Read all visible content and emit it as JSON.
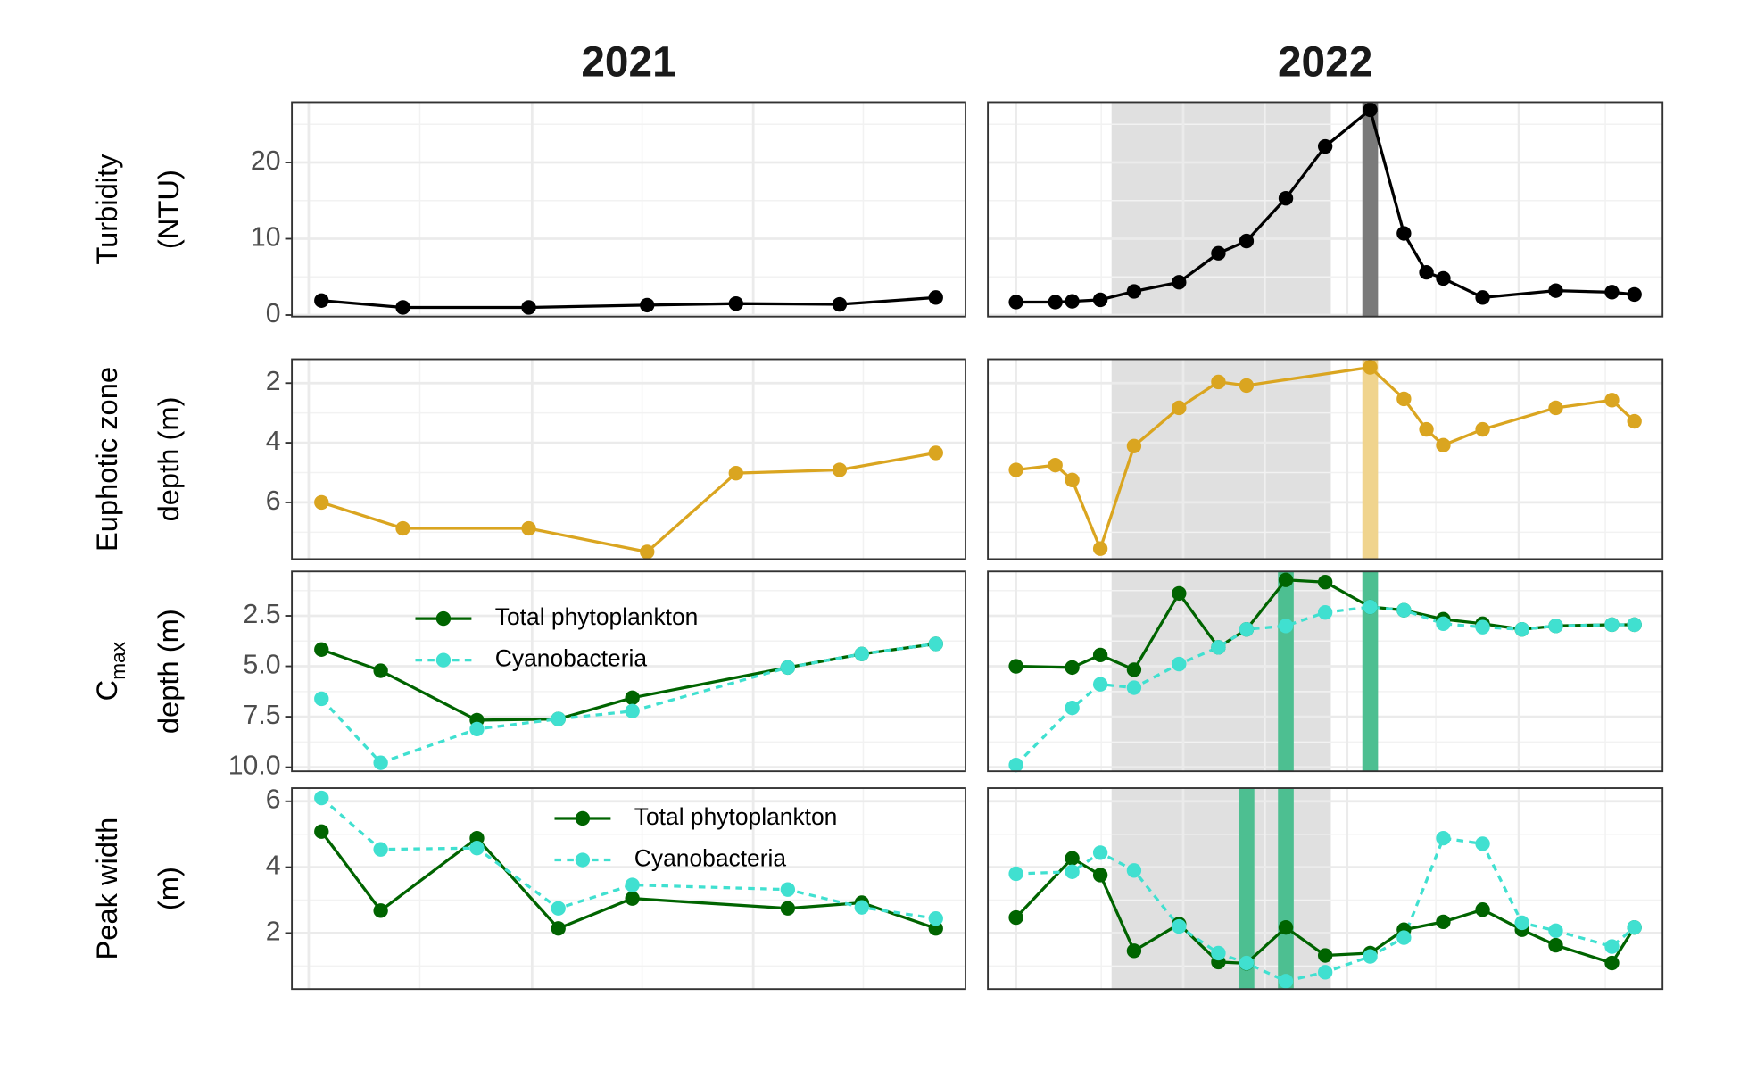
{
  "chart_data": [
    {
      "type": "line",
      "title": "2021",
      "ylabel": [
        "Turbidity",
        "(NTU)"
      ],
      "xlim": [
        150,
        241
      ],
      "ylim": [
        -0.2,
        27.9
      ],
      "yticks": [
        0,
        10,
        20
      ],
      "series": [
        {
          "color": "#000000",
          "x": [
            154,
            165,
            182,
            198,
            210,
            224,
            237
          ],
          "values": [
            1.9,
            1.0,
            1.0,
            1.3,
            1.5,
            1.4,
            2.3
          ]
        }
      ]
    },
    {
      "type": "line",
      "title": "2022",
      "xlim": [
        110,
        230
      ],
      "ylim": [
        -0.2,
        27.9
      ],
      "shaded_span": [
        132,
        171
      ],
      "shade_color": "#e0e0e0",
      "highlight_x": [
        178
      ],
      "highlight_color": "#7a7a7a",
      "series": [
        {
          "color": "#000000",
          "x": [
            115,
            122,
            125,
            130,
            136,
            144,
            151,
            156,
            163,
            170,
            178,
            184,
            188,
            191,
            198,
            211,
            221,
            225
          ],
          "values": [
            1.7,
            1.7,
            1.8,
            2.0,
            3.1,
            4.3,
            8.1,
            9.7,
            15.3,
            22.1,
            26.9,
            10.7,
            5.6,
            4.8,
            2.3,
            3.2,
            3.0,
            2.7
          ]
        }
      ]
    },
    {
      "type": "line",
      "ylabel": [
        "Euphotic zone",
        "depth (m)"
      ],
      "xlim": [
        150,
        241
      ],
      "ylim": [
        1.2,
        7.9
      ],
      "y_reversed": true,
      "yticks": [
        2,
        4,
        6
      ],
      "series": [
        {
          "color": "#DAA520",
          "x": [
            154,
            165,
            182,
            198,
            210,
            224,
            237
          ],
          "values": [
            6.0,
            6.87,
            6.87,
            7.66,
            5.02,
            4.91,
            4.34
          ]
        }
      ]
    },
    {
      "type": "line",
      "xlim": [
        110,
        230
      ],
      "ylim": [
        1.2,
        7.9
      ],
      "y_reversed": true,
      "shaded_span": [
        132,
        171
      ],
      "shade_color": "#e0e0e0",
      "highlight_x": [
        178
      ],
      "highlight_color": "#f0d48e",
      "series": [
        {
          "color": "#DAA520",
          "x": [
            115,
            122,
            125,
            130,
            136,
            144,
            151,
            156,
            178,
            184,
            188,
            191,
            198,
            211,
            221,
            225
          ],
          "values": [
            4.91,
            4.75,
            5.25,
            7.55,
            4.11,
            2.83,
            1.96,
            2.08,
            1.47,
            2.53,
            3.55,
            4.08,
            3.55,
            2.83,
            2.57,
            3.28
          ]
        }
      ]
    },
    {
      "type": "line",
      "ylabel": [
        "C",
        "depth (m)"
      ],
      "ylabel_sub": "max",
      "xlim": [
        150,
        241
      ],
      "ylim": [
        0.3,
        10.2
      ],
      "y_reversed": true,
      "yticks": [
        2.5,
        {
          "value": 5,
          "label": "5.0"
        },
        7.5,
        {
          "value": 10,
          "label": "10.0"
        }
      ],
      "legend": "top-left",
      "series": [
        {
          "name": "Total phytoplankton",
          "color": "#006400",
          "linestyle": "solid",
          "x": [
            154,
            162,
            175,
            186,
            196,
            217,
            227,
            237
          ],
          "values": [
            4.17,
            5.22,
            7.67,
            7.61,
            6.56,
            5.06,
            4.39,
            3.89
          ]
        },
        {
          "name": "Cyanobacteria",
          "color": "#40E0D0",
          "linestyle": "dashed",
          "x": [
            154,
            162,
            175,
            186,
            196,
            217,
            227,
            237
          ],
          "values": [
            6.61,
            9.78,
            8.11,
            7.61,
            7.22,
            5.06,
            4.39,
            3.89
          ]
        }
      ]
    },
    {
      "type": "line",
      "xlim": [
        110,
        230
      ],
      "ylim": [
        0.3,
        10.2
      ],
      "y_reversed": true,
      "shaded_span": [
        132,
        171
      ],
      "shade_color": "#e0e0e0",
      "highlight_x": [
        163,
        178
      ],
      "highlight_color": "#4dbf91",
      "series": [
        {
          "color": "#006400",
          "linestyle": "solid",
          "x": [
            115,
            125,
            130,
            136,
            144,
            151,
            156,
            163,
            170,
            178,
            184,
            191,
            198,
            205,
            211,
            221,
            225
          ],
          "values": [
            5.0,
            5.06,
            4.44,
            5.17,
            1.39,
            4.06,
            3.17,
            0.72,
            0.83,
            2.06,
            2.22,
            2.67,
            2.89,
            3.17,
            3.0,
            2.94,
            2.94
          ]
        },
        {
          "color": "#40E0D0",
          "linestyle": "dashed",
          "x": [
            115,
            125,
            130,
            136,
            144,
            151,
            156,
            163,
            170,
            178,
            184,
            191,
            198,
            205,
            211,
            221,
            225
          ],
          "values": [
            9.89,
            7.06,
            5.89,
            6.06,
            4.89,
            4.06,
            3.17,
            3.0,
            2.33,
            2.06,
            2.22,
            2.89,
            3.06,
            3.17,
            3.0,
            2.94,
            2.94
          ]
        }
      ]
    },
    {
      "type": "line",
      "ylabel": [
        "Peak width",
        "(m)"
      ],
      "xlim": [
        150,
        241
      ],
      "ylim": [
        0.3,
        6.4
      ],
      "yticks": [
        2,
        4,
        6
      ],
      "legend": "top-center",
      "series": [
        {
          "name": "Total phytoplankton",
          "color": "#006400",
          "linestyle": "solid",
          "x": [
            154,
            162,
            175,
            186,
            196,
            217,
            227,
            237
          ],
          "values": [
            5.08,
            2.68,
            4.88,
            2.14,
            3.05,
            2.75,
            2.92,
            2.14
          ]
        },
        {
          "name": "Cyanobacteria",
          "color": "#40E0D0",
          "linestyle": "dashed",
          "x": [
            154,
            162,
            175,
            186,
            196,
            217,
            227,
            237
          ],
          "values": [
            6.1,
            4.54,
            4.58,
            2.75,
            3.46,
            3.32,
            2.78,
            2.44
          ]
        }
      ]
    },
    {
      "type": "line",
      "xlim": [
        110,
        230
      ],
      "ylim": [
        0.3,
        6.4
      ],
      "shaded_span": [
        132,
        171
      ],
      "shade_color": "#e0e0e0",
      "highlight_x": [
        156,
        163
      ],
      "highlight_color": "#4dbf91",
      "series": [
        {
          "color": "#006400",
          "linestyle": "solid",
          "x": [
            115,
            125,
            130,
            136,
            144,
            151,
            156,
            163,
            170,
            178,
            184,
            191,
            198,
            205,
            211,
            221,
            225
          ],
          "values": [
            2.47,
            4.27,
            3.76,
            1.46,
            2.27,
            1.12,
            1.08,
            2.17,
            1.32,
            1.39,
            2.1,
            2.34,
            2.71,
            2.1,
            1.63,
            1.09,
            2.17
          ]
        },
        {
          "color": "#40E0D0",
          "linestyle": "dashed",
          "x": [
            115,
            125,
            130,
            136,
            144,
            151,
            156,
            163,
            170,
            178,
            184,
            191,
            198,
            205,
            211,
            221,
            225
          ],
          "values": [
            3.8,
            3.86,
            4.44,
            3.9,
            2.2,
            1.39,
            1.09,
            0.54,
            0.81,
            1.29,
            1.86,
            4.88,
            4.71,
            2.31,
            2.07,
            1.59,
            2.17
          ]
        }
      ]
    }
  ]
}
